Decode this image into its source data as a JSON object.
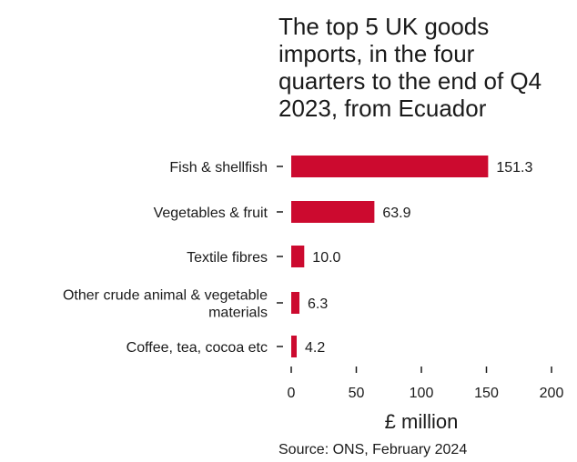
{
  "chart_data": {
    "type": "bar",
    "orientation": "horizontal",
    "title_lines": [
      "The top 5 UK goods",
      "imports, in the four",
      "quarters to the end of Q4",
      "2023, from Ecuador"
    ],
    "categories": [
      [
        "Fish & shellfish"
      ],
      [
        "Vegetables & fruit"
      ],
      [
        "Textile fibres"
      ],
      [
        "Other crude animal & vegetable",
        "materials"
      ],
      [
        "Coffee, tea, cocoa etc"
      ]
    ],
    "values": [
      151.3,
      63.9,
      10.0,
      6.3,
      4.2
    ],
    "value_labels": [
      "151.3",
      "63.9",
      "10.0",
      "6.3",
      "4.2"
    ],
    "xlabel": "£ million",
    "xlim": [
      0,
      200
    ],
    "xticks": [
      0,
      50,
      100,
      150,
      200
    ],
    "bar_color": "#cc0a2f",
    "grid": false,
    "source": "Source: ONS, February 2024"
  }
}
